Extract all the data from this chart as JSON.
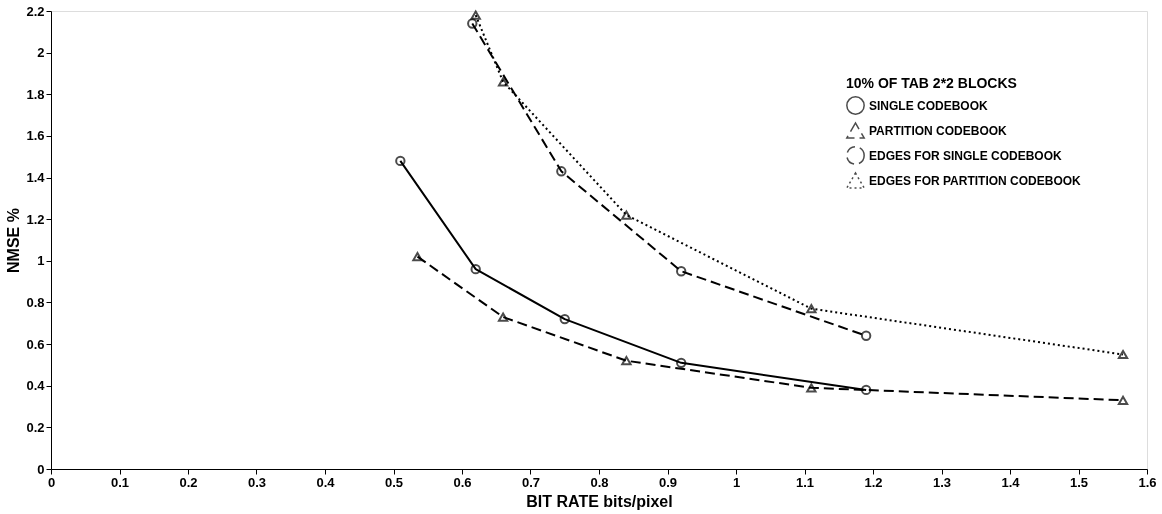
{
  "chart_data": {
    "type": "line",
    "xlabel": "BIT RATE    bits/pixel",
    "ylabel": "NMSE %",
    "legend_title": "10% OF TAB 2*2 BLOCKS",
    "legend": "top right",
    "grid": false,
    "xlim": [
      0,
      1.6
    ],
    "xticks": [
      0,
      0.1,
      0.2,
      0.3,
      0.4,
      0.5,
      0.6,
      0.7,
      0.8,
      0.9,
      1,
      1.1,
      1.2,
      1.3,
      1.4,
      1.5,
      1.6
    ],
    "ylim": [
      0,
      2.2
    ],
    "yticks": [
      0,
      0.2,
      0.4,
      0.6,
      0.8,
      1,
      1.2,
      1.4,
      1.6,
      1.8,
      2,
      2.2
    ],
    "series": [
      {
        "name": "SINGLE CODEBOOK",
        "color": "#000000",
        "marker": "circle",
        "line_style": "solid",
        "x": [
          0.51,
          0.62,
          0.75,
          0.92,
          1.19
        ],
        "values": [
          1.48,
          0.96,
          0.72,
          0.51,
          0.38
        ]
      },
      {
        "name": "PARTITION CODEBOOK",
        "color": "#000000",
        "marker": "triangle",
        "line_style": "dashed",
        "x": [
          0.535,
          0.66,
          0.84,
          1.11,
          1.565
        ],
        "values": [
          1.02,
          0.73,
          0.52,
          0.39,
          0.33
        ]
      },
      {
        "name": "EDGES FOR SINGLE CODEBOOK",
        "color": "#000000",
        "marker": "circle",
        "line_style": "dashed",
        "x": [
          0.615,
          0.745,
          0.92,
          1.19
        ],
        "values": [
          2.14,
          1.43,
          0.95,
          0.64
        ]
      },
      {
        "name": "EDGES FOR PARTITION CODEBOOK",
        "color": "#000000",
        "marker": "triangle",
        "line_style": "dotted",
        "x": [
          0.62,
          0.66,
          0.84,
          1.11,
          1.565
        ],
        "values": [
          2.18,
          1.86,
          1.22,
          0.77,
          0.55
        ]
      }
    ]
  }
}
